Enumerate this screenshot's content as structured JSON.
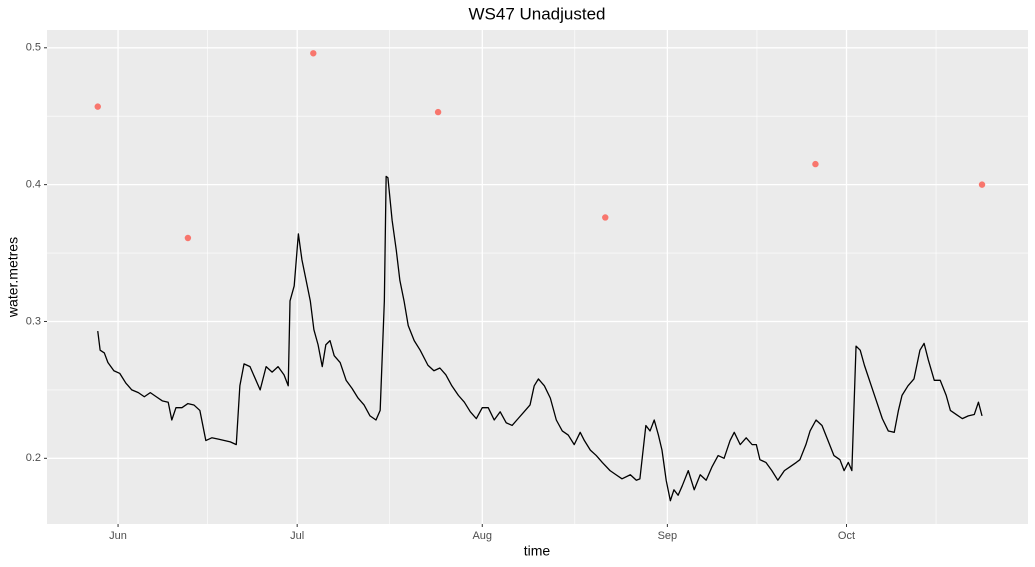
{
  "chart_data": {
    "type": "line",
    "title": "WS47 Unadjusted",
    "x_label": "time",
    "y_label": "water.metres",
    "xlim": [
      140.1,
      304.4
    ],
    "ylim": [
      0.152,
      0.513
    ],
    "xticks": [
      {
        "value": 152,
        "label": "Jun"
      },
      {
        "value": 182,
        "label": "Jul"
      },
      {
        "value": 213,
        "label": "Aug"
      },
      {
        "value": 244,
        "label": "Sep"
      },
      {
        "value": 274,
        "label": "Oct"
      }
    ],
    "yticks": [
      0.2,
      0.3,
      0.4,
      0.5
    ],
    "grid": true,
    "minor_grid": true,
    "panel_color": "#ebebeb",
    "series": [
      {
        "type": "line",
        "color": "#000000",
        "x": [
          148.6,
          149.0,
          149.7,
          150.3,
          151.3,
          152.3,
          153.3,
          154.3,
          155.4,
          156.4,
          157.4,
          158.4,
          159.4,
          160.4,
          161.0,
          161.7,
          162.7,
          163.7,
          164.7,
          165.7,
          166.7,
          167.7,
          168.8,
          169.8,
          170.8,
          171.8,
          172.4,
          173.1,
          174.1,
          175.1,
          175.8,
          176.8,
          177.8,
          178.8,
          179.8,
          180.5,
          180.8,
          181.5,
          182.2,
          182.8,
          183.5,
          184.2,
          184.8,
          185.5,
          186.2,
          186.8,
          187.5,
          188.2,
          189.2,
          190.2,
          191.2,
          192.2,
          193.2,
          194.2,
          195.2,
          195.9,
          196.6,
          196.9,
          197.2,
          197.9,
          198.6,
          199.2,
          199.9,
          200.6,
          201.6,
          202.6,
          203.9,
          204.9,
          205.9,
          206.9,
          207.9,
          209.0,
          210.0,
          211.0,
          212.0,
          213.0,
          214.0,
          215.0,
          216.0,
          217.0,
          218.0,
          219.0,
          220.0,
          221.0,
          221.7,
          222.4,
          223.4,
          224.4,
          225.4,
          226.4,
          227.4,
          228.4,
          229.4,
          230.1,
          231.1,
          232.1,
          233.1,
          234.4,
          235.4,
          236.4,
          237.8,
          238.8,
          239.4,
          240.4,
          241.1,
          241.8,
          242.5,
          243.1,
          243.8,
          244.5,
          245.1,
          245.8,
          246.5,
          247.5,
          248.5,
          249.5,
          250.5,
          251.5,
          252.5,
          253.5,
          254.5,
          255.2,
          256.2,
          257.2,
          258.2,
          258.9,
          259.5,
          260.5,
          261.5,
          262.5,
          263.6,
          264.6,
          265.6,
          266.2,
          267.2,
          267.9,
          268.9,
          269.9,
          270.9,
          271.9,
          272.9,
          273.6,
          274.3,
          274.9,
          275.6,
          276.3,
          277.0,
          278.0,
          279.0,
          280.0,
          281.0,
          282.0,
          282.7,
          283.3,
          284.3,
          285.3,
          286.3,
          287.0,
          287.7,
          288.7,
          289.7,
          290.7,
          291.4,
          292.4,
          293.4,
          294.4,
          295.4,
          296.1,
          296.7
        ],
        "values": [
          0.293,
          0.279,
          0.277,
          0.27,
          0.264,
          0.262,
          0.255,
          0.25,
          0.248,
          0.245,
          0.248,
          0.245,
          0.242,
          0.241,
          0.228,
          0.237,
          0.237,
          0.24,
          0.239,
          0.235,
          0.213,
          0.215,
          0.214,
          0.213,
          0.212,
          0.21,
          0.253,
          0.269,
          0.267,
          0.257,
          0.25,
          0.267,
          0.263,
          0.267,
          0.261,
          0.253,
          0.315,
          0.326,
          0.364,
          0.345,
          0.33,
          0.315,
          0.294,
          0.283,
          0.267,
          0.283,
          0.286,
          0.275,
          0.27,
          0.257,
          0.251,
          0.244,
          0.239,
          0.231,
          0.228,
          0.235,
          0.315,
          0.406,
          0.405,
          0.374,
          0.352,
          0.33,
          0.315,
          0.297,
          0.286,
          0.279,
          0.268,
          0.264,
          0.266,
          0.261,
          0.253,
          0.246,
          0.241,
          0.234,
          0.229,
          0.237,
          0.237,
          0.228,
          0.234,
          0.226,
          0.224,
          0.229,
          0.234,
          0.239,
          0.253,
          0.258,
          0.253,
          0.244,
          0.228,
          0.22,
          0.217,
          0.21,
          0.219,
          0.213,
          0.206,
          0.202,
          0.197,
          0.191,
          0.188,
          0.185,
          0.188,
          0.184,
          0.185,
          0.224,
          0.22,
          0.228,
          0.217,
          0.206,
          0.184,
          0.169,
          0.177,
          0.173,
          0.18,
          0.191,
          0.177,
          0.188,
          0.184,
          0.194,
          0.202,
          0.2,
          0.213,
          0.219,
          0.21,
          0.215,
          0.21,
          0.21,
          0.199,
          0.197,
          0.191,
          0.184,
          0.191,
          0.194,
          0.197,
          0.199,
          0.21,
          0.22,
          0.228,
          0.224,
          0.213,
          0.202,
          0.199,
          0.191,
          0.197,
          0.191,
          0.282,
          0.279,
          0.268,
          0.255,
          0.242,
          0.229,
          0.22,
          0.219,
          0.235,
          0.246,
          0.253,
          0.258,
          0.279,
          0.284,
          0.272,
          0.257,
          0.257,
          0.246,
          0.235,
          0.232,
          0.229,
          0.231,
          0.232,
          0.241,
          0.231
        ]
      },
      {
        "type": "scatter",
        "color": "#f8766d",
        "x": [
          148.6,
          163.7,
          184.7,
          205.6,
          233.6,
          268.8,
          296.7
        ],
        "values": [
          0.457,
          0.361,
          0.496,
          0.453,
          0.376,
          0.415,
          0.4
        ]
      }
    ]
  }
}
